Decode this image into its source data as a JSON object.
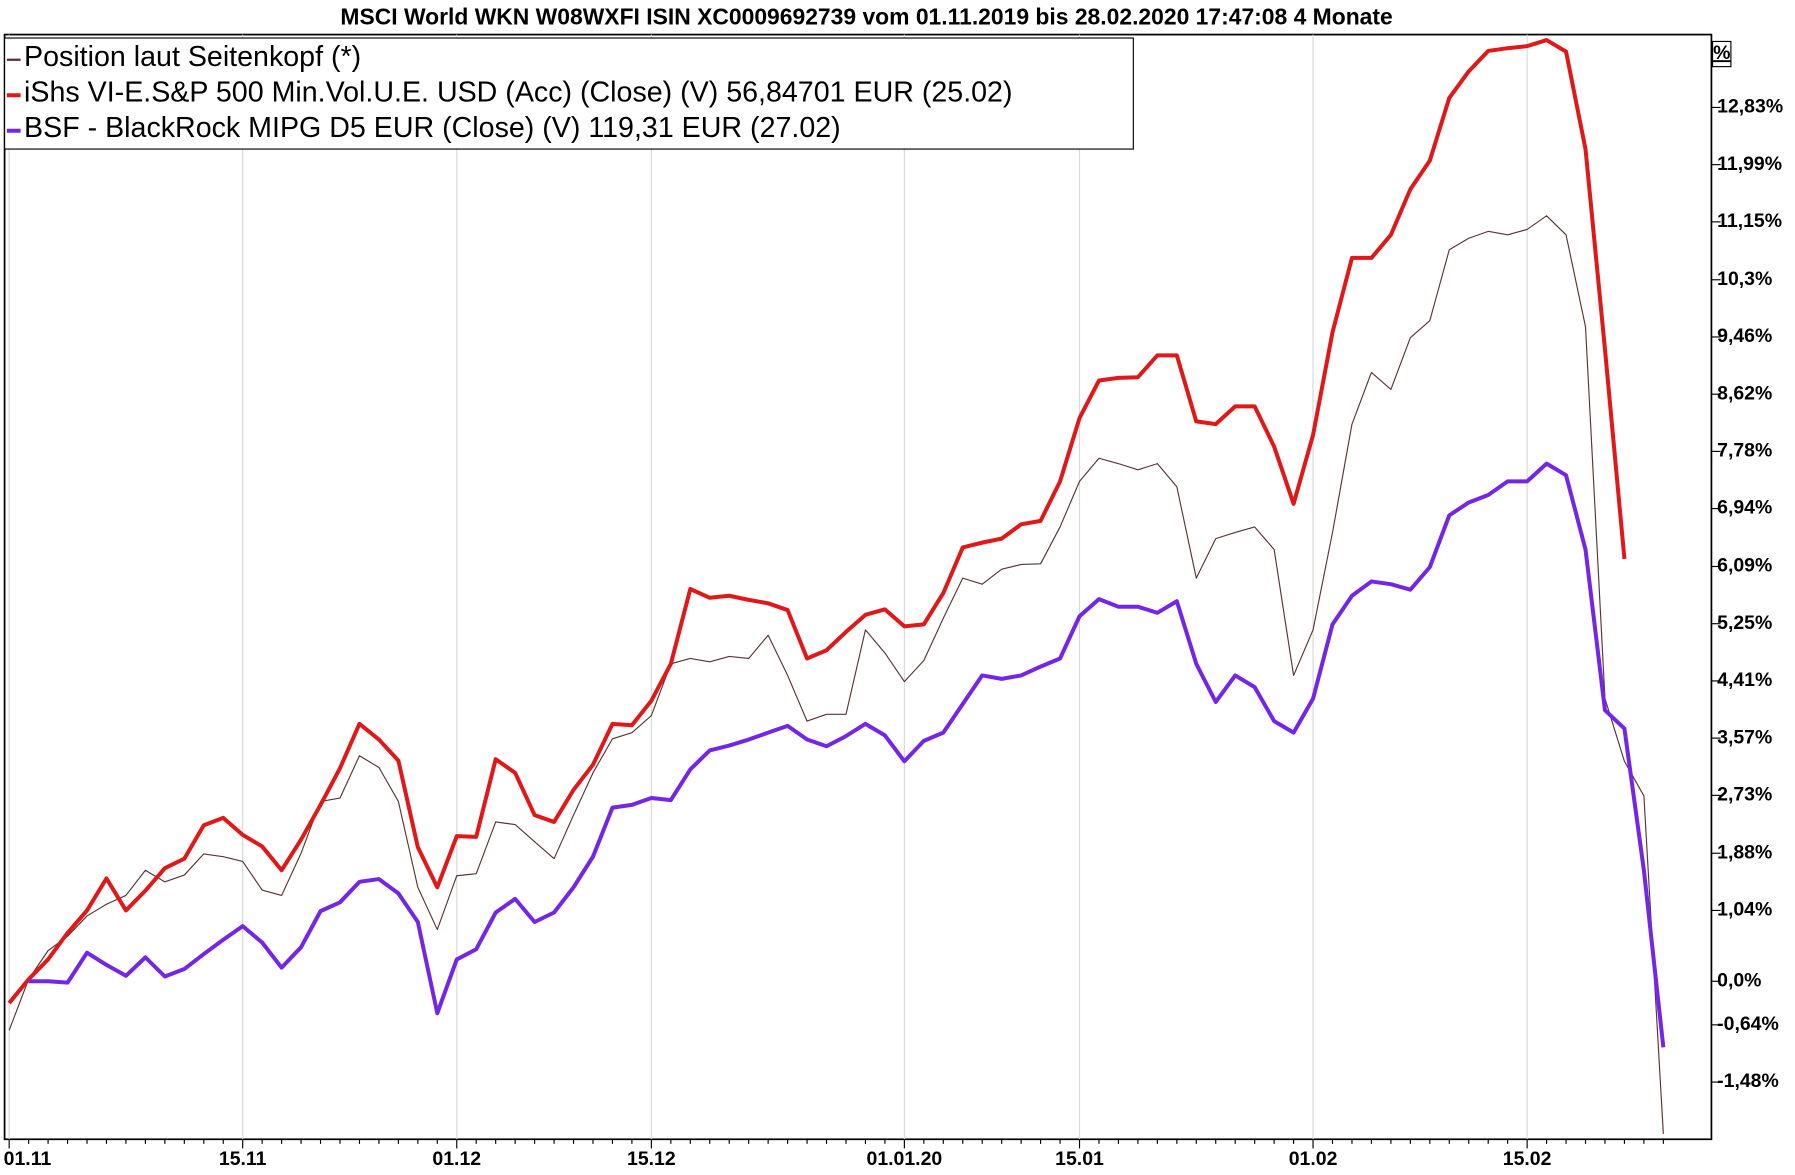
{
  "chart_data": {
    "type": "line",
    "title": "MSCI World WKN W08WXFI ISIN XC0009692739 vom 01.11.2019 bis 28.02.2020 17:47:08 4 Monate",
    "y_axis_label": "%",
    "legend": "top-left",
    "grid": true,
    "categories": [
      "01.11",
      null,
      null,
      null,
      null,
      null,
      null,
      null,
      null,
      null,
      null,
      null,
      "15.11",
      null,
      null,
      null,
      null,
      null,
      null,
      null,
      null,
      null,
      null,
      "01.12",
      null,
      null,
      null,
      null,
      null,
      null,
      null,
      null,
      null,
      "15.12",
      null,
      null,
      null,
      null,
      null,
      null,
      null,
      null,
      null,
      null,
      null,
      null,
      "01.01.20",
      null,
      null,
      null,
      null,
      null,
      null,
      null,
      null,
      "15.01",
      null,
      null,
      null,
      null,
      null,
      null,
      null,
      null,
      null,
      null,
      null,
      "01.02",
      null,
      null,
      null,
      null,
      null,
      null,
      null,
      null,
      null,
      null,
      "15.02",
      null,
      null,
      null,
      null,
      null,
      null,
      null
    ],
    "ylim": [
      -2.32,
      13.9
    ],
    "yticks": [
      {
        "value": -1.48,
        "label": "-1,48%"
      },
      {
        "value": -0.64,
        "label": "-0,64%"
      },
      {
        "value": 0,
        "label": "0,0%"
      },
      {
        "value": 1.04,
        "label": "1,04%"
      },
      {
        "value": 1.88,
        "label": "1,88%"
      },
      {
        "value": 2.73,
        "label": "2,73%"
      },
      {
        "value": 3.57,
        "label": "3,57%"
      },
      {
        "value": 4.41,
        "label": "4,41%"
      },
      {
        "value": 5.25,
        "label": "5,25%"
      },
      {
        "value": 6.09,
        "label": "6,09%"
      },
      {
        "value": 6.94,
        "label": "6,94%"
      },
      {
        "value": 7.78,
        "label": "7,78%"
      },
      {
        "value": 8.62,
        "label": "8,62%"
      },
      {
        "value": 9.46,
        "label": "9,46%"
      },
      {
        "value": 10.3,
        "label": "10,3%"
      },
      {
        "value": 11.15,
        "label": "11,15%"
      },
      {
        "value": 11.99,
        "label": "11,99%"
      },
      {
        "value": 12.83,
        "label": "12,83%"
      }
    ],
    "series": [
      {
        "name": "Position laut Seitenkopf (*)",
        "color": "#5a3434",
        "width": 1,
        "values": [
          -0.72,
          0.03,
          0.45,
          0.66,
          0.96,
          1.13,
          1.26,
          1.63,
          1.46,
          1.56,
          1.87,
          1.83,
          1.76,
          1.34,
          1.26,
          1.88,
          2.64,
          2.69,
          3.31,
          3.14,
          2.64,
          1.38,
          0.76,
          1.55,
          1.58,
          2.34,
          2.3,
          2.05,
          1.8,
          2.44,
          3.06,
          3.56,
          3.65,
          3.9,
          4.66,
          4.74,
          4.69,
          4.77,
          4.74,
          5.08,
          4.49,
          3.82,
          3.92,
          3.92,
          5.16,
          4.82,
          4.4,
          4.71,
          5.33,
          5.92,
          5.83,
          6.05,
          6.12,
          6.13,
          6.67,
          7.34,
          7.68,
          7.6,
          7.51,
          7.6,
          7.26,
          5.92,
          6.5,
          6.59,
          6.67,
          6.34,
          4.49,
          5.16,
          6.59,
          8.18,
          8.94,
          8.69,
          9.45,
          9.7,
          10.74,
          10.91,
          11.01,
          10.96,
          11.04,
          11.24,
          10.96,
          9.61,
          4.15,
          3.23,
          2.72,
          -2.24
        ]
      },
      {
        "name": "iShs VI-E.S&P 500 Min.Vol.U.E. USD (Acc) (Close) (V) 56,84701 EUR (25.02)",
        "color": "#e01818",
        "width": 3.5,
        "values": [
          -0.32,
          0.03,
          0.32,
          0.71,
          1.04,
          1.51,
          1.04,
          1.33,
          1.66,
          1.8,
          2.29,
          2.4,
          2.15,
          1.98,
          1.63,
          2.08,
          2.59,
          3.13,
          3.78,
          3.55,
          3.24,
          1.97,
          1.38,
          2.13,
          2.12,
          3.26,
          3.06,
          2.44,
          2.34,
          2.81,
          3.18,
          3.78,
          3.76,
          4.12,
          4.66,
          5.76,
          5.63,
          5.66,
          5.6,
          5.55,
          5.45,
          4.74,
          4.86,
          5.13,
          5.38,
          5.46,
          5.21,
          5.24,
          5.7,
          6.37,
          6.44,
          6.5,
          6.71,
          6.76,
          7.34,
          8.27,
          8.82,
          8.86,
          8.87,
          9.19,
          9.19,
          8.22,
          8.18,
          8.44,
          8.44,
          7.85,
          7.01,
          8.02,
          9.53,
          10.62,
          10.62,
          10.96,
          11.63,
          12.05,
          12.97,
          13.36,
          13.66,
          13.7,
          13.73,
          13.82,
          13.65,
          12.22,
          9.28,
          6.2,
          null,
          null
        ]
      },
      {
        "name": "BSF - BlackRock MIPG D5 EUR (Close) (V) 119,31 EUR (27.02)",
        "color": "#7426e6",
        "width": 3.5,
        "values": [
          null,
          0.0,
          0.0,
          -0.02,
          0.42,
          0.24,
          0.08,
          0.35,
          0.07,
          0.18,
          0.4,
          0.61,
          0.81,
          0.57,
          0.2,
          0.5,
          1.03,
          1.16,
          1.46,
          1.5,
          1.29,
          0.87,
          -0.47,
          0.32,
          0.47,
          1.01,
          1.21,
          0.87,
          1.01,
          1.38,
          1.83,
          2.55,
          2.59,
          2.69,
          2.66,
          3.11,
          3.39,
          3.46,
          3.55,
          3.65,
          3.75,
          3.55,
          3.45,
          3.6,
          3.78,
          3.61,
          3.23,
          3.53,
          3.65,
          4.07,
          4.49,
          4.44,
          4.49,
          4.62,
          4.74,
          5.36,
          5.61,
          5.5,
          5.5,
          5.41,
          5.58,
          4.66,
          4.1,
          4.49,
          4.32,
          3.82,
          3.65,
          4.15,
          5.24,
          5.66,
          5.87,
          5.83,
          5.75,
          6.08,
          6.84,
          7.03,
          7.14,
          7.34,
          7.34,
          7.6,
          7.43,
          6.34,
          3.98,
          3.71,
          1.63,
          -0.97
        ]
      }
    ]
  }
}
